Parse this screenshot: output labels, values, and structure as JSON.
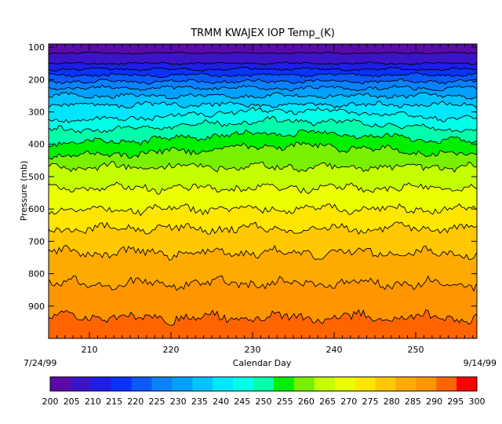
{
  "chart_data": {
    "type": "heatmap",
    "title": "TRMM KWAJEX IOP Temp_(K)",
    "xlabel": "Calendar Day",
    "ylabel": "Pressure (mb)",
    "xlim": [
      205,
      257.5
    ],
    "ylim": [
      90,
      1000
    ],
    "y_reversed": true,
    "x_ticks": [
      210,
      220,
      230,
      240,
      250
    ],
    "y_ticks": [
      100,
      200,
      300,
      400,
      500,
      600,
      700,
      800,
      900
    ],
    "start_date": "7/24/99",
    "end_date": "9/14/99",
    "colorbar": {
      "levels": [
        200,
        205,
        210,
        215,
        220,
        225,
        230,
        235,
        240,
        245,
        250,
        255,
        260,
        265,
        270,
        275,
        280,
        285,
        290,
        295,
        300
      ],
      "colors": [
        "#5a0aa8",
        "#3c14c8",
        "#1e1ee6",
        "#0a32ff",
        "#0a5aff",
        "#0a82ff",
        "#00a0ff",
        "#00c3ff",
        "#00e6ff",
        "#00ffe6",
        "#00ffaa",
        "#00f000",
        "#78f000",
        "#c3ff00",
        "#ebff00",
        "#ffe600",
        "#ffc800",
        "#ffaa00",
        "#ff9600",
        "#ff6400",
        "#ff0000"
      ]
    },
    "contour_levels": [
      {
        "temp_K": 205,
        "pressure_mb": 118
      },
      {
        "temp_K": 210,
        "pressure_mb": 150
      },
      {
        "temp_K": 215,
        "pressure_mb": 168
      },
      {
        "temp_K": 220,
        "pressure_mb": 186
      },
      {
        "temp_K": 225,
        "pressure_mb": 206
      },
      {
        "temp_K": 230,
        "pressure_mb": 226
      },
      {
        "temp_K": 235,
        "pressure_mb": 250
      },
      {
        "temp_K": 240,
        "pressure_mb": 278
      },
      {
        "temp_K": 245,
        "pressure_mb": 310
      },
      {
        "temp_K": 250,
        "pressure_mb": 342
      },
      {
        "temp_K": 255,
        "pressure_mb": 380
      },
      {
        "temp_K": 260,
        "pressure_mb": 420
      },
      {
        "temp_K": 265,
        "pressure_mb": 470
      },
      {
        "temp_K": 270,
        "pressure_mb": 535
      },
      {
        "temp_K": 275,
        "pressure_mb": 600
      },
      {
        "temp_K": 280,
        "pressure_mb": 660
      },
      {
        "temp_K": 285,
        "pressure_mb": 735
      },
      {
        "temp_K": 290,
        "pressure_mb": 830
      },
      {
        "temp_K": 295,
        "pressure_mb": 935
      }
    ]
  }
}
